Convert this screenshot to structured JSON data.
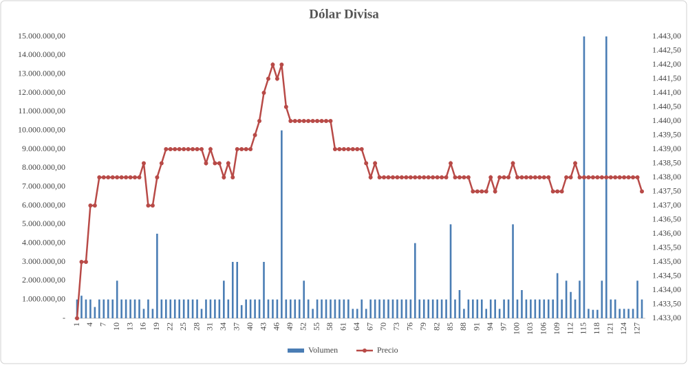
{
  "chart_data": {
    "type": "combo",
    "title": "Dólar Divisa",
    "categories": [
      "1",
      null,
      null,
      "4",
      null,
      null,
      "7",
      null,
      null,
      "10",
      null,
      null,
      "13",
      null,
      null,
      "16",
      null,
      null,
      "19",
      null,
      null,
      "22",
      null,
      null,
      "25",
      null,
      null,
      "28",
      null,
      null,
      "31",
      null,
      null,
      "34",
      null,
      null,
      "37",
      null,
      null,
      "40",
      null,
      null,
      "43",
      null,
      null,
      "46",
      null,
      null,
      "49",
      null,
      null,
      "52",
      null,
      null,
      "55",
      null,
      null,
      "58",
      null,
      null,
      "61",
      null,
      null,
      "64",
      null,
      null,
      "67",
      null,
      null,
      "70",
      null,
      null,
      "73",
      null,
      null,
      "76",
      null,
      null,
      "79",
      null,
      null,
      "82",
      null,
      null,
      "85",
      null,
      null,
      "88",
      null,
      null,
      "91",
      null,
      null,
      "94",
      null,
      null,
      "97",
      null,
      null,
      "100",
      null,
      null,
      "103",
      null,
      null,
      "106",
      null,
      null,
      "109",
      null,
      null,
      "112",
      null,
      null,
      "115",
      null,
      null,
      "118",
      null,
      null,
      "121",
      null,
      null,
      "124",
      null,
      null,
      "127",
      null
    ],
    "series": [
      {
        "name": "Volumen",
        "type": "bar",
        "color": "#4a7db4",
        "values": [
          1000000,
          1200000,
          1000000,
          1000000,
          600000,
          1000000,
          1000000,
          1000000,
          1000000,
          2000000,
          1000000,
          1000000,
          1000000,
          1000000,
          1000000,
          500000,
          1000000,
          500000,
          4500000,
          1000000,
          1000000,
          1000000,
          1000000,
          1000000,
          1000000,
          1000000,
          1000000,
          1000000,
          500000,
          1000000,
          1000000,
          1000000,
          1000000,
          2000000,
          1000000,
          3000000,
          3000000,
          700000,
          1000000,
          1000000,
          1000000,
          1000000,
          3000000,
          1000000,
          1000000,
          1000000,
          10000000,
          1000000,
          1000000,
          1000000,
          1000000,
          2000000,
          1000000,
          500000,
          1000000,
          1000000,
          1000000,
          1000000,
          1000000,
          1000000,
          1000000,
          1000000,
          500000,
          500000,
          1000000,
          500000,
          1000000,
          1000000,
          1000000,
          1000000,
          1000000,
          1000000,
          1000000,
          1000000,
          1000000,
          1000000,
          4000000,
          1000000,
          1000000,
          1000000,
          1000000,
          1000000,
          1000000,
          1000000,
          5000000,
          1000000,
          1500000,
          500000,
          1000000,
          1000000,
          1000000,
          1000000,
          500000,
          1000000,
          1000000,
          500000,
          1000000,
          1000000,
          5000000,
          1000000,
          1500000,
          1000000,
          1000000,
          1000000,
          1000000,
          1000000,
          1000000,
          1000000,
          2400000,
          1000000,
          2000000,
          1400000,
          1000000,
          2000000,
          15000000,
          500000,
          450000,
          450000,
          2000000,
          15000000,
          1000000,
          1000000,
          500000,
          500000,
          500000,
          500000,
          2000000,
          1000000
        ]
      },
      {
        "name": "Precio",
        "type": "line",
        "axis": "y2",
        "color": "#b84a47",
        "values": [
          1433,
          1435,
          1435,
          1437,
          1437,
          1438,
          1438,
          1438,
          1438,
          1438,
          1438,
          1438,
          1438,
          1438,
          1438,
          1438.5,
          1437,
          1437,
          1438,
          1438.5,
          1439,
          1439,
          1439,
          1439,
          1439,
          1439,
          1439,
          1439,
          1439,
          1438.5,
          1439,
          1438.5,
          1438.5,
          1438,
          1438.5,
          1438,
          1439,
          1439,
          1439,
          1439,
          1439.5,
          1440,
          1441,
          1441.5,
          1442,
          1441.5,
          1442,
          1440.5,
          1440,
          1440,
          1440,
          1440,
          1440,
          1440,
          1440,
          1440,
          1440,
          1440,
          1439,
          1439,
          1439,
          1439,
          1439,
          1439,
          1439,
          1438.5,
          1438,
          1438.5,
          1438,
          1438,
          1438,
          1438,
          1438,
          1438,
          1438,
          1438,
          1438,
          1438,
          1438,
          1438,
          1438,
          1438,
          1438,
          1438,
          1438.5,
          1438,
          1438,
          1438,
          1438,
          1437.5,
          1437.5,
          1437.5,
          1437.5,
          1438,
          1437.5,
          1438,
          1438,
          1438,
          1438.5,
          1438,
          1438,
          1438,
          1438,
          1438,
          1438,
          1438,
          1438,
          1437.5,
          1437.5,
          1437.5,
          1438,
          1438,
          1438.5,
          1438,
          1438,
          1438,
          1438,
          1438,
          1438,
          1438,
          1438,
          1438,
          1438,
          1438,
          1438,
          1438,
          1438,
          1437.5
        ]
      }
    ],
    "ylim": [
      0,
      15000000
    ],
    "yticks": [
      {
        "value": 0,
        "label": "-"
      },
      {
        "value": 1000000,
        "label": "1.000.000,00"
      },
      {
        "value": 2000000,
        "label": "2.000.000,00"
      },
      {
        "value": 3000000,
        "label": "3.000.000,00"
      },
      {
        "value": 4000000,
        "label": "4.000.000,00"
      },
      {
        "value": 5000000,
        "label": "5.000.000,00"
      },
      {
        "value": 6000000,
        "label": "6.000.000,00"
      },
      {
        "value": 7000000,
        "label": "7.000.000,00"
      },
      {
        "value": 8000000,
        "label": "8.000.000,00"
      },
      {
        "value": 9000000,
        "label": "9.000.000,00"
      },
      {
        "value": 10000000,
        "label": "10.000.000,00"
      },
      {
        "value": 11000000,
        "label": "11.000.000,00"
      },
      {
        "value": 12000000,
        "label": "12.000.000,00"
      },
      {
        "value": 13000000,
        "label": "13.000.000,00"
      },
      {
        "value": 14000000,
        "label": "14.000.000,00"
      },
      {
        "value": 15000000,
        "label": "15.000.000,00"
      }
    ],
    "y2lim": [
      1433,
      1443
    ],
    "y2ticks": [
      {
        "value": 1433,
        "label": "1.433,00"
      },
      {
        "value": 1433.5,
        "label": "1.433,50"
      },
      {
        "value": 1434,
        "label": "1.434,00"
      },
      {
        "value": 1434.5,
        "label": "1.434,50"
      },
      {
        "value": 1435,
        "label": "1.435,00"
      },
      {
        "value": 1435.5,
        "label": "1.435,50"
      },
      {
        "value": 1436,
        "label": "1.436,00"
      },
      {
        "value": 1436.5,
        "label": "1.436,50"
      },
      {
        "value": 1437,
        "label": "1.437,00"
      },
      {
        "value": 1437.5,
        "label": "1.437,50"
      },
      {
        "value": 1438,
        "label": "1.438,00"
      },
      {
        "value": 1438.5,
        "label": "1.438,50"
      },
      {
        "value": 1439,
        "label": "1.439,00"
      },
      {
        "value": 1439.5,
        "label": "1.439,50"
      },
      {
        "value": 1440,
        "label": "1.440,00"
      },
      {
        "value": 1440.5,
        "label": "1.440,50"
      },
      {
        "value": 1441,
        "label": "1.441,00"
      },
      {
        "value": 1441.5,
        "label": "1.441,50"
      },
      {
        "value": 1442,
        "label": "1.442,00"
      },
      {
        "value": 1442.5,
        "label": "1.442,50"
      },
      {
        "value": 1443,
        "label": "1.443,00"
      }
    ],
    "grid": false,
    "legend": "bottom"
  }
}
